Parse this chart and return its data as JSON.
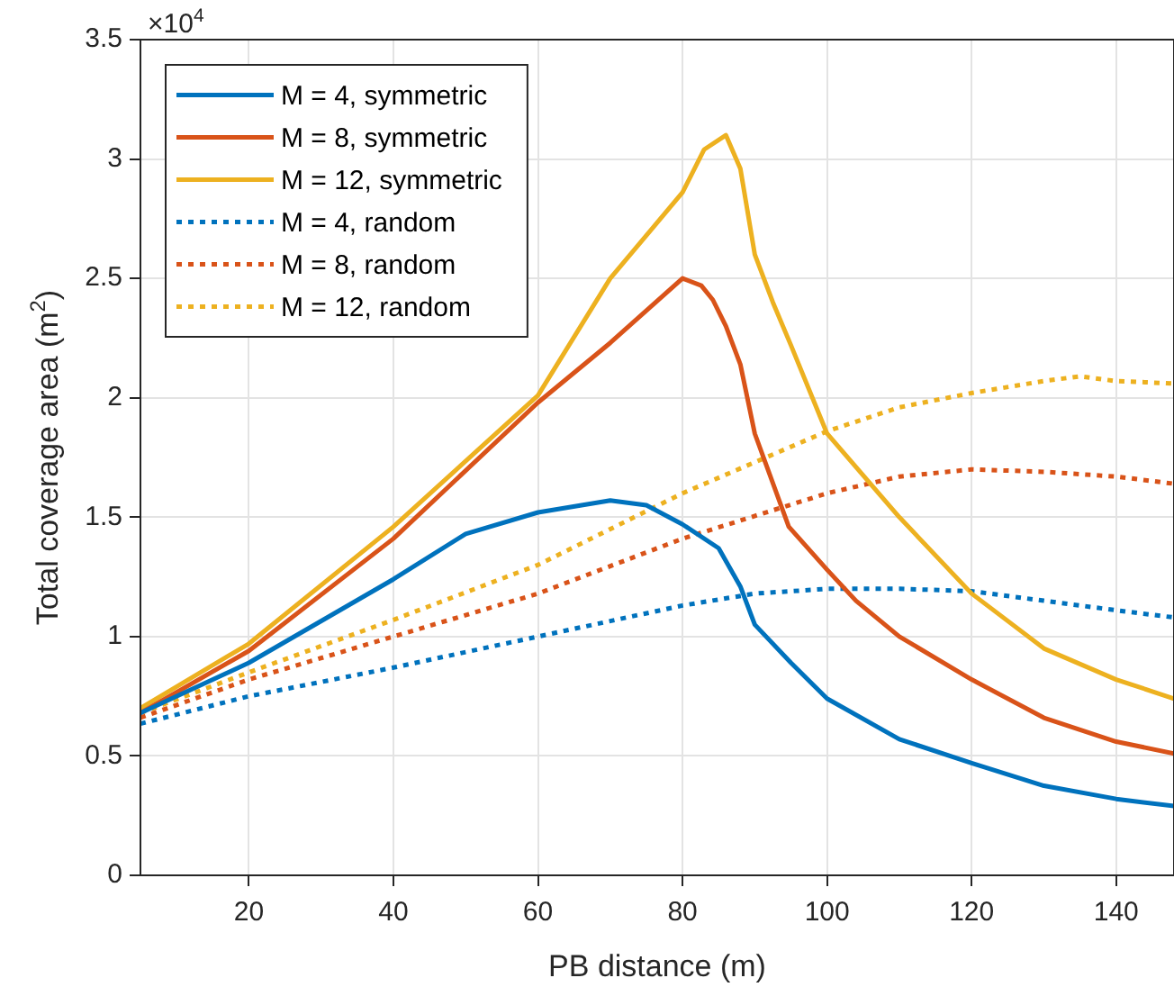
{
  "chart_data": {
    "type": "line",
    "xlabel": "PB distance (m)",
    "ylabel": "Total coverage area (m$^{2}$)",
    "annotations": [
      "×10$^{4}$"
    ],
    "xlim": [
      5,
      148
    ],
    "xticks": [
      20,
      40,
      60,
      80,
      100,
      120,
      140
    ],
    "ylim": [
      0,
      3.5
    ],
    "yticks": [
      0,
      0.5,
      1,
      1.5,
      2,
      2.5,
      3,
      3.5
    ],
    "grid": true,
    "legend": "top left",
    "marker": "none",
    "series": [
      {
        "name": "M = 4, symmetric",
        "color": "#0072bd",
        "line_style": "solid",
        "x": [
          5,
          20,
          40,
          50,
          60,
          70,
          75,
          80,
          85,
          88,
          90,
          95,
          100,
          110,
          120,
          130,
          140,
          148
        ],
        "values": [
          0.68,
          0.89,
          1.24,
          1.43,
          1.52,
          1.57,
          1.55,
          1.47,
          1.37,
          1.21,
          1.05,
          0.89,
          0.74,
          0.57,
          0.47,
          0.375,
          0.32,
          0.29
        ]
      },
      {
        "name": "M = 8, symmetric",
        "color": "#d95319",
        "line_style": "solid",
        "x": [
          5,
          20,
          40,
          60,
          70,
          80,
          82.6,
          84.2,
          86,
          88,
          90,
          94.7,
          100,
          104,
          110,
          120,
          130,
          140,
          148
        ],
        "values": [
          0.68,
          0.94,
          1.41,
          1.98,
          2.23,
          2.5,
          2.47,
          2.41,
          2.3,
          2.14,
          1.85,
          1.46,
          1.28,
          1.15,
          1.0,
          0.82,
          0.66,
          0.56,
          0.51
        ]
      },
      {
        "name": "M = 12, symmetric",
        "color": "#edb120",
        "line_style": "solid",
        "x": [
          5,
          20,
          40,
          60,
          70,
          80,
          83,
          86,
          88,
          90,
          92.5,
          95,
          100,
          110,
          120,
          130,
          140,
          148
        ],
        "values": [
          0.7,
          0.97,
          1.46,
          2.01,
          2.5,
          2.86,
          3.04,
          3.1,
          2.96,
          2.6,
          2.4,
          2.22,
          1.85,
          1.5,
          1.18,
          0.95,
          0.82,
          0.74
        ]
      },
      {
        "name": "M = 4, random",
        "color": "#0072bd",
        "line_style": "dotted",
        "x": [
          5,
          20,
          40,
          60,
          80,
          90,
          100,
          110,
          120,
          130,
          140,
          148
        ],
        "values": [
          0.635,
          0.75,
          0.87,
          1.0,
          1.13,
          1.18,
          1.2,
          1.2,
          1.19,
          1.15,
          1.11,
          1.08
        ]
      },
      {
        "name": "M = 8, random",
        "color": "#d95319",
        "line_style": "dotted",
        "x": [
          5,
          20,
          40,
          60,
          80,
          100,
          110,
          120,
          130,
          140,
          148
        ],
        "values": [
          0.66,
          0.82,
          1.0,
          1.18,
          1.41,
          1.6,
          1.67,
          1.7,
          1.69,
          1.67,
          1.64
        ]
      },
      {
        "name": "M = 12, random",
        "color": "#edb120",
        "line_style": "dotted",
        "x": [
          5,
          20,
          40,
          60,
          80,
          100,
          110,
          120,
          130,
          135,
          140,
          148
        ],
        "values": [
          0.68,
          0.85,
          1.07,
          1.3,
          1.6,
          1.86,
          1.96,
          2.02,
          2.07,
          2.09,
          2.07,
          2.06
        ]
      }
    ]
  }
}
